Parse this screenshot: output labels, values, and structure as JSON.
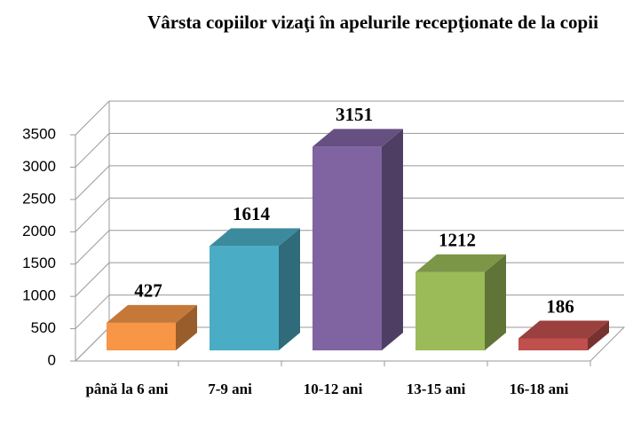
{
  "chart_data": {
    "type": "bar3d",
    "title": "Vârsta copiilor vizaţi în apelurile recepţionate de la copii",
    "categories": [
      "până la 6 ani",
      "7-9 ani",
      "10-12 ani",
      "13-15 ani",
      "16-18 ani"
    ],
    "values": [
      427,
      1614,
      3151,
      1212,
      186
    ],
    "colors": [
      "#f79646",
      "#4bacc6",
      "#8064a2",
      "#9bbb59",
      "#c0504d"
    ],
    "ylim": [
      0,
      3500
    ],
    "yticks": [
      0,
      500,
      1000,
      1500,
      2000,
      2500,
      3000,
      3500
    ],
    "grid": true
  }
}
